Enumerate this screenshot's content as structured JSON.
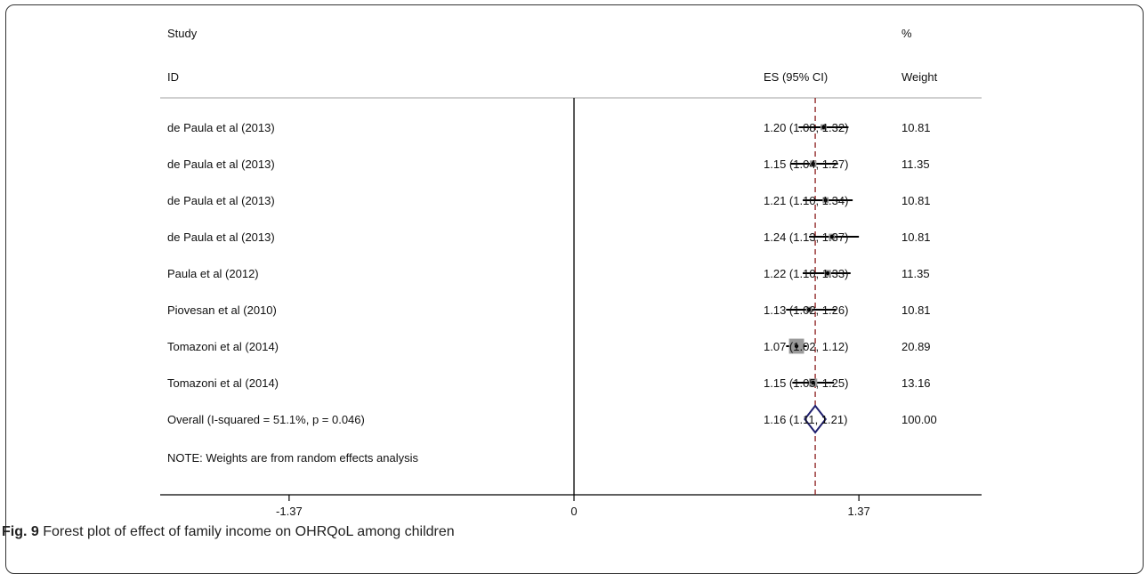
{
  "figure": {
    "caption_label": "Fig. 9",
    "caption_text": " Forest plot of effect of family income on OHRQoL among children"
  },
  "colors": {
    "line": "#000000",
    "null_line": "#8b1a1a",
    "marker_box": "#9a9a9a",
    "diamond": "#1f1f6e"
  },
  "chart_data": {
    "type": "forest",
    "headers": {
      "study_top": "Study",
      "study_bottom": "ID",
      "es": "ES (95% CI)",
      "weight_top": "%",
      "weight_bottom": "Weight"
    },
    "studies": [
      {
        "id": "de Paula et al (2013)",
        "es": 1.2,
        "lo": 1.08,
        "hi": 1.32,
        "es_text": "1.20 (1.08, 1.32)",
        "weight": 10.81,
        "weight_text": "10.81"
      },
      {
        "id": "de Paula et al (2013)",
        "es": 1.15,
        "lo": 1.04,
        "hi": 1.27,
        "es_text": "1.15 (1.04, 1.27)",
        "weight": 11.35,
        "weight_text": "11.35"
      },
      {
        "id": "de Paula et al (2013)",
        "es": 1.21,
        "lo": 1.1,
        "hi": 1.34,
        "es_text": "1.21 (1.10, 1.34)",
        "weight": 10.81,
        "weight_text": "10.81"
      },
      {
        "id": "de Paula et al (2013)",
        "es": 1.24,
        "lo": 1.13,
        "hi": 1.37,
        "es_text": "1.24 (1.13, 1.37)",
        "weight": 10.81,
        "weight_text": "10.81"
      },
      {
        "id": "Paula et al (2012)",
        "es": 1.22,
        "lo": 1.1,
        "hi": 1.33,
        "es_text": "1.22 (1.10, 1.33)",
        "weight": 11.35,
        "weight_text": "11.35"
      },
      {
        "id": "Piovesan et al (2010)",
        "es": 1.13,
        "lo": 1.02,
        "hi": 1.26,
        "es_text": "1.13 (1.02, 1.26)",
        "weight": 10.81,
        "weight_text": "10.81"
      },
      {
        "id": "Tomazoni et al (2014)",
        "es": 1.07,
        "lo": 1.02,
        "hi": 1.12,
        "es_text": "1.07 (1.02, 1.12)",
        "weight": 20.89,
        "weight_text": "20.89"
      },
      {
        "id": "Tomazoni et al (2014)",
        "es": 1.15,
        "lo": 1.05,
        "hi": 1.25,
        "es_text": "1.15 (1.05, 1.25)",
        "weight": 13.16,
        "weight_text": "13.16"
      }
    ],
    "overall": {
      "label": "Overall  (I-squared = 51.1%, p = 0.046)",
      "es": 1.16,
      "lo": 1.11,
      "hi": 1.21,
      "es_text": "1.16 (1.11, 1.21)",
      "weight_text": "100.00"
    },
    "note": "NOTE: Weights are from random effects analysis",
    "x_ticks": [
      {
        "value": -1.37,
        "label": "-1.37"
      },
      {
        "value": 0,
        "label": "0"
      },
      {
        "value": 1.37,
        "label": "1.37"
      }
    ],
    "xlim": [
      -1.99,
      1.96
    ],
    "null_line_value": 0
  }
}
